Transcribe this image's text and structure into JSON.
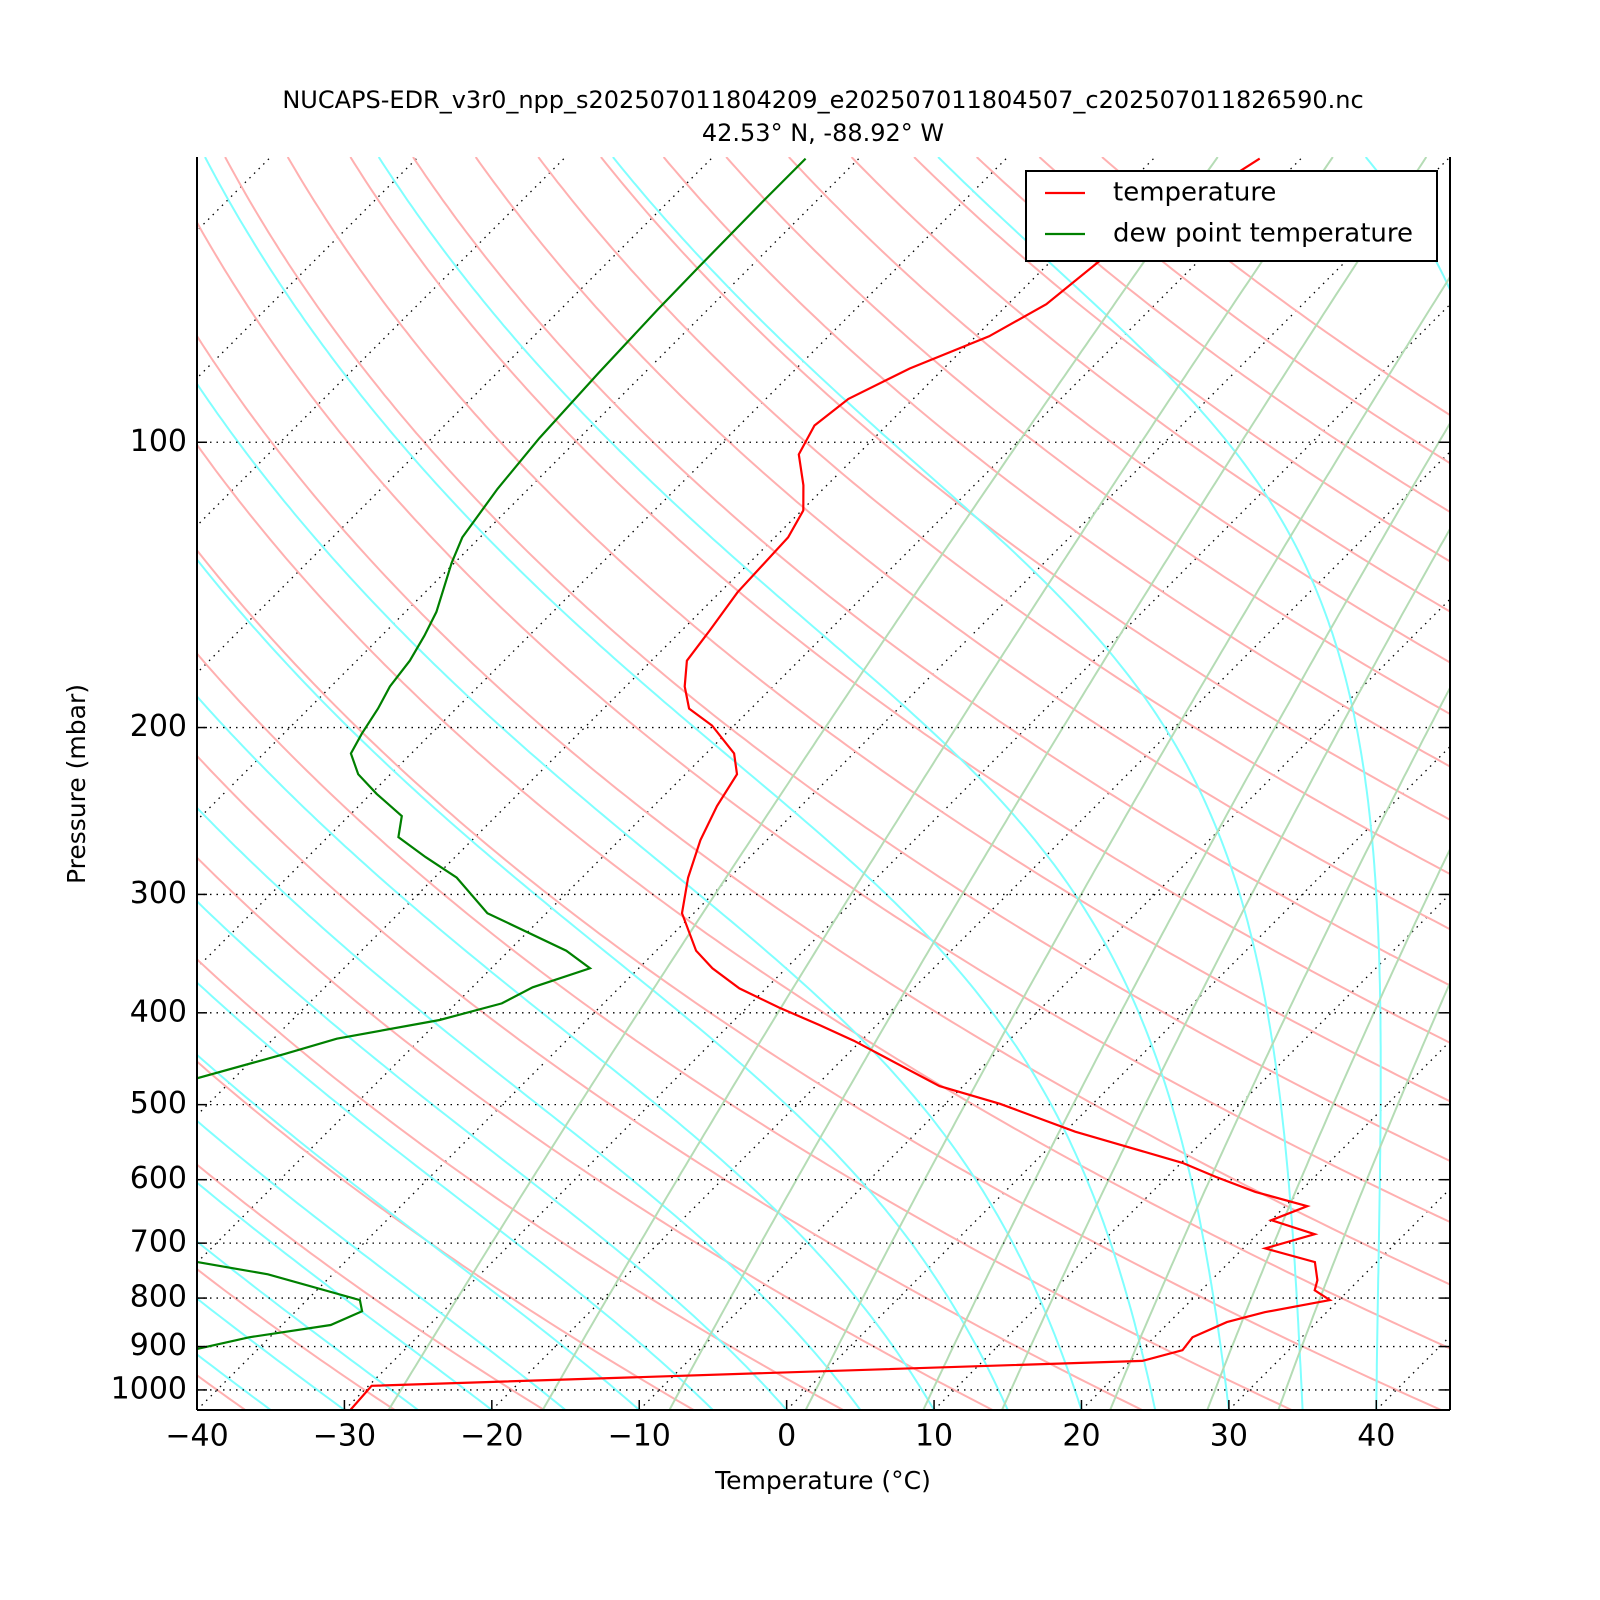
{
  "chart_data": {
    "type": "skewt",
    "title": "NUCAPS-EDR_v3r0_npp_s202507011804209_e202507011804507_c202507011826590.nc",
    "subtitle": "42.53° N, -88.92° W",
    "xlabel": "Temperature (°C)",
    "ylabel": "Pressure (mbar)",
    "xlim": [
      -40,
      45
    ],
    "ylim": [
      1050,
      50
    ],
    "yscale": "log",
    "xticks": [
      {
        "value": -40,
        "label": "−40"
      },
      {
        "value": -30,
        "label": "−30"
      },
      {
        "value": -20,
        "label": "−20"
      },
      {
        "value": -10,
        "label": "−10"
      },
      0,
      10,
      20,
      30,
      40
    ],
    "yticks": [
      100,
      200,
      300,
      400,
      500,
      600,
      700,
      800,
      900,
      1000
    ],
    "grid": true,
    "legend": "upper right",
    "series": [
      {
        "name": "temperature",
        "color": "#ff0000",
        "pressure": [
          1049,
          990,
          932,
          908,
          880,
          848,
          828,
          804,
          785,
          766,
          733,
          709,
          685,
          662,
          640,
          618,
          596,
          576,
          534,
          499,
          478,
          428,
          412,
          395,
          377,
          359,
          344,
          314,
          288,
          263,
          242,
          224,
          213,
          199,
          191,
          181,
          170,
          158,
          144,
          126,
          118,
          111,
          103,
          96,
          90,
          83.6,
          77.3,
          71.5,
          64.2,
          50.2
        ],
        "values": [
          -29.6,
          -29.8,
          20.8,
          22.8,
          22.6,
          23.9,
          25.8,
          29.4,
          27.7,
          27.2,
          25.8,
          21.5,
          23.9,
          20.0,
          21.5,
          17.0,
          13.3,
          10.1,
          0.7,
          -6.3,
          -11.6,
          -20.5,
          -23.9,
          -27.8,
          -31.8,
          -35.0,
          -37.3,
          -40.8,
          -42.8,
          -44.5,
          -45.7,
          -46.5,
          -48.1,
          -51.5,
          -54.2,
          -56.0,
          -57.6,
          -58.1,
          -58.8,
          -59.1,
          -59.9,
          -61.6,
          -64.0,
          -64.9,
          -64.4,
          -62.3,
          -59.1,
          -57.4,
          -56.7,
          -52.8
        ]
      },
      {
        "name": "dew point temperature",
        "color": "#008000",
        "pressure": [
          905,
          880,
          854,
          826,
          804,
          755,
          733,
          null,
          469,
          442,
          426,
          407,
          391,
          376,
          359,
          344,
          314,
          288,
          274,
          261,
          248,
          235,
          224,
          213,
          203,
          191,
          181,
          170,
          160,
          151,
          134,
          126,
          112,
          99,
          84.6,
          72.4,
          65.4,
          55.7,
          50.2
        ],
        "values": [
          -44.1,
          -41.4,
          -36.7,
          -35.5,
          -36.4,
          -44.4,
          -50.0,
          null,
          -62.5,
          -58.2,
          -55.7,
          -50.0,
          -46.9,
          -45.9,
          -43.3,
          -46.1,
          -54.0,
          -58.5,
          -62.0,
          -65.2,
          -66.4,
          -69.6,
          -72.2,
          -74.1,
          -74.7,
          -75.3,
          -76.0,
          -76.4,
          -77.1,
          -77.9,
          -80.2,
          -81.2,
          -82.1,
          -82.7,
          -83.1,
          -83.4,
          -83.5,
          -83.6,
          -83.6
        ]
      }
    ]
  }
}
